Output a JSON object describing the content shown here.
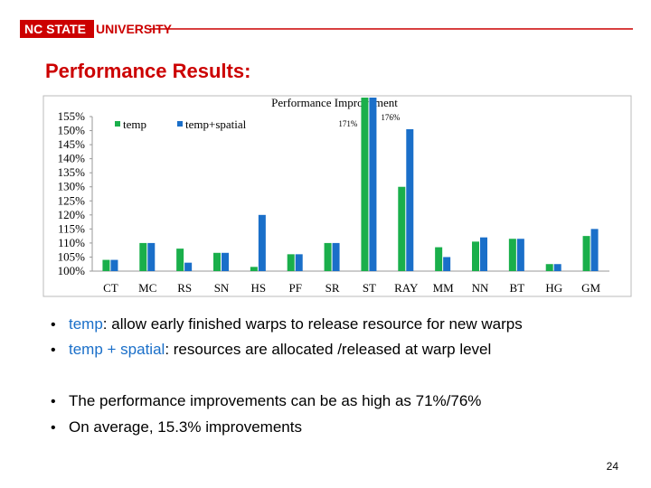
{
  "header": {
    "logo_part1": "NC STATE",
    "logo_part2": "UNIVERSITY"
  },
  "slide_title": "Performance Results:",
  "chart_data": {
    "type": "bar",
    "title": "Performance Improvement",
    "categories": [
      "CT",
      "MC",
      "RS",
      "SN",
      "HS",
      "PF",
      "SR",
      "ST",
      "RAY",
      "MM",
      "NN",
      "BT",
      "HG",
      "GM"
    ],
    "series": [
      {
        "name": "temp",
        "color": "#1aaf4b",
        "values": [
          104,
          110,
          108,
          106.5,
          101.5,
          106,
          110,
          171,
          130,
          108.5,
          110.5,
          111.5,
          102.5,
          112.5
        ],
        "value_labels": [
          null,
          null,
          null,
          null,
          null,
          null,
          null,
          "171%",
          null,
          null,
          null,
          null,
          null,
          null
        ]
      },
      {
        "name": "temp+spatial",
        "color": "#1a6fc9",
        "values": [
          104,
          110,
          103,
          106.5,
          120,
          106,
          110,
          176,
          150.5,
          105,
          112,
          111.5,
          102.5,
          115
        ],
        "value_labels": [
          null,
          null,
          null,
          null,
          null,
          null,
          null,
          "176%",
          null,
          null,
          null,
          null,
          null,
          null
        ]
      }
    ],
    "ylim": [
      100,
      155
    ],
    "yticks": [
      {
        "value": 100,
        "label": "100%"
      },
      {
        "value": 105,
        "label": "105%"
      },
      {
        "value": 110,
        "label": "110%"
      },
      {
        "value": 115,
        "label": "115%"
      },
      {
        "value": 120,
        "label": "120%"
      },
      {
        "value": 125,
        "label": "125%"
      },
      {
        "value": 130,
        "label": "130%"
      },
      {
        "value": 135,
        "label": "135%"
      },
      {
        "value": 140,
        "label": "140%"
      },
      {
        "value": 145,
        "label": "145%"
      },
      {
        "value": 150,
        "label": "150%"
      },
      {
        "value": 155,
        "label": "155%"
      }
    ],
    "legend": "upper left",
    "grid": false
  },
  "bullets": [
    {
      "term": "temp",
      "text": ": allow early finished warps to release resource for new warps"
    },
    {
      "term": "temp + spatial",
      "text": ": resources are allocated /released at warp level"
    },
    {
      "term": null,
      "text": "The performance improvements can be as high as 71%/76%"
    },
    {
      "term": null,
      "text": "On average, 15.3% improvements"
    }
  ],
  "page_number": "24"
}
